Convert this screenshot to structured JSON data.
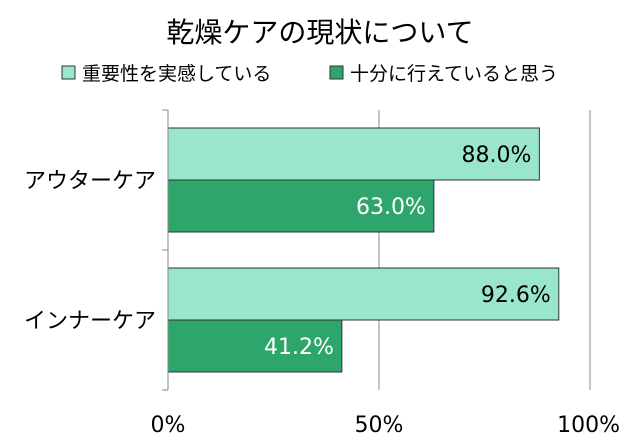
{
  "chart_data": {
    "type": "bar",
    "orientation": "horizontal",
    "title": "乾燥ケアの現状について",
    "categories": [
      "アウターケア",
      "インナーケア"
    ],
    "series": [
      {
        "name": "重要性を実感している",
        "values": [
          88.0,
          92.6
        ],
        "labels": [
          "88.0%",
          "92.6%"
        ],
        "color": "#99e6cc",
        "label_color": "#000000"
      },
      {
        "name": "十分に行えていると思う",
        "values": [
          63.0,
          41.2
        ],
        "labels": [
          "63.0%",
          "41.2%"
        ],
        "color": "#2ea66b",
        "label_color": "#ffffff"
      }
    ],
    "xlim": [
      0,
      100
    ],
    "x_ticks": [
      {
        "value": 0,
        "label": "0%"
      },
      {
        "value": 50,
        "label": "50%"
      },
      {
        "value": 100,
        "label": "100%"
      }
    ],
    "grid": true,
    "legend_position": "top",
    "bar_stroke": "#333333",
    "grid_color": "#888888"
  }
}
